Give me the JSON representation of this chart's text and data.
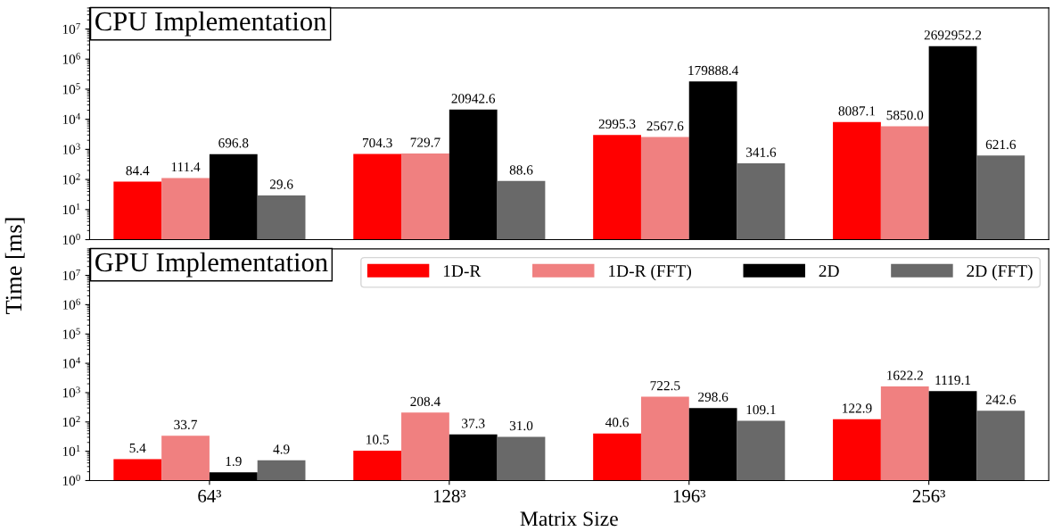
{
  "chart_data": [
    {
      "type": "bar",
      "title": "CPU Implementation",
      "categories": [
        null,
        null,
        null,
        null
      ],
      "series": [
        {
          "color": "#ff0000",
          "values": [
            84.4,
            704.3,
            2995.3,
            8087.1
          ],
          "value_labels": [
            "84.4",
            "704.3",
            "2995.3",
            "8087.1"
          ]
        },
        {
          "color": "#f08080",
          "values": [
            111.4,
            729.7,
            2567.6,
            5850.0
          ],
          "value_labels": [
            "111.4",
            "729.7",
            "2567.6",
            "5850.0"
          ]
        },
        {
          "color": "#000000",
          "values": [
            696.8,
            20942.6,
            179888.4,
            2692952.2
          ],
          "value_labels": [
            "696.8",
            "20942.6",
            "179888.4",
            "2692952.2"
          ]
        },
        {
          "color": "#696969",
          "values": [
            29.6,
            88.6,
            341.6,
            621.6
          ],
          "value_labels": [
            "29.6",
            "88.6",
            "341.6",
            "621.6"
          ]
        }
      ],
      "log": "y",
      "ylim": [
        1,
        50000000
      ],
      "yticks": [
        {
          "value": 1,
          "label": "10$^{0}$"
        },
        {
          "value": 10,
          "label": "10$^{1}$"
        },
        {
          "value": 100,
          "label": "10$^{2}$"
        },
        {
          "value": 1000,
          "label": "10$^{3}$"
        },
        {
          "value": 10000,
          "label": "10$^{4}$"
        },
        {
          "value": 100000,
          "label": "10$^{5}$"
        },
        {
          "value": 1000000,
          "label": "10$^{6}$"
        },
        {
          "value": 10000000,
          "label": "10$^{7}$"
        }
      ],
      "tick_labels": "y",
      "grid": false
    },
    {
      "type": "bar",
      "title": "GPU Implementation",
      "categories": [
        "64³",
        "128³",
        "196³",
        "256³"
      ],
      "xlabel": "Matrix Size",
      "ylabel": "Time [ms]",
      "series": [
        {
          "name": "1D-R",
          "color": "#ff0000",
          "values": [
            5.4,
            10.5,
            40.6,
            122.9
          ],
          "value_labels": [
            "5.4",
            "10.5",
            "40.6",
            "122.9"
          ]
        },
        {
          "name": "1D-R (FFT)",
          "color": "#f08080",
          "values": [
            33.7,
            208.4,
            722.5,
            1622.2
          ],
          "value_labels": [
            "33.7",
            "208.4",
            "722.5",
            "1622.2"
          ]
        },
        {
          "name": "2D",
          "color": "#000000",
          "values": [
            1.9,
            37.3,
            298.6,
            1119.1
          ],
          "value_labels": [
            "1.9",
            "37.3",
            "298.6",
            "1119.1"
          ]
        },
        {
          "name": "2D (FFT)",
          "color": "#696969",
          "values": [
            4.9,
            31.0,
            109.1,
            242.6
          ],
          "value_labels": [
            "4.9",
            "31.0",
            "109.1",
            "242.6"
          ]
        }
      ],
      "log": "y",
      "ylim": [
        1,
        80000000
      ],
      "yticks": [
        {
          "value": 1,
          "label": "10$^{0}$"
        },
        {
          "value": 10,
          "label": "10$^{1}$"
        },
        {
          "value": 100,
          "label": "10$^{2}$"
        },
        {
          "value": 1000,
          "label": "10$^{3}$"
        },
        {
          "value": 10000,
          "label": "10$^{4}$"
        },
        {
          "value": 100000,
          "label": "10$^{5}$"
        },
        {
          "value": 1000000,
          "label": "10$^{6}$"
        },
        {
          "value": 10000000,
          "label": "10$^{7}$"
        }
      ],
      "grid": false,
      "legend": "top right"
    }
  ]
}
